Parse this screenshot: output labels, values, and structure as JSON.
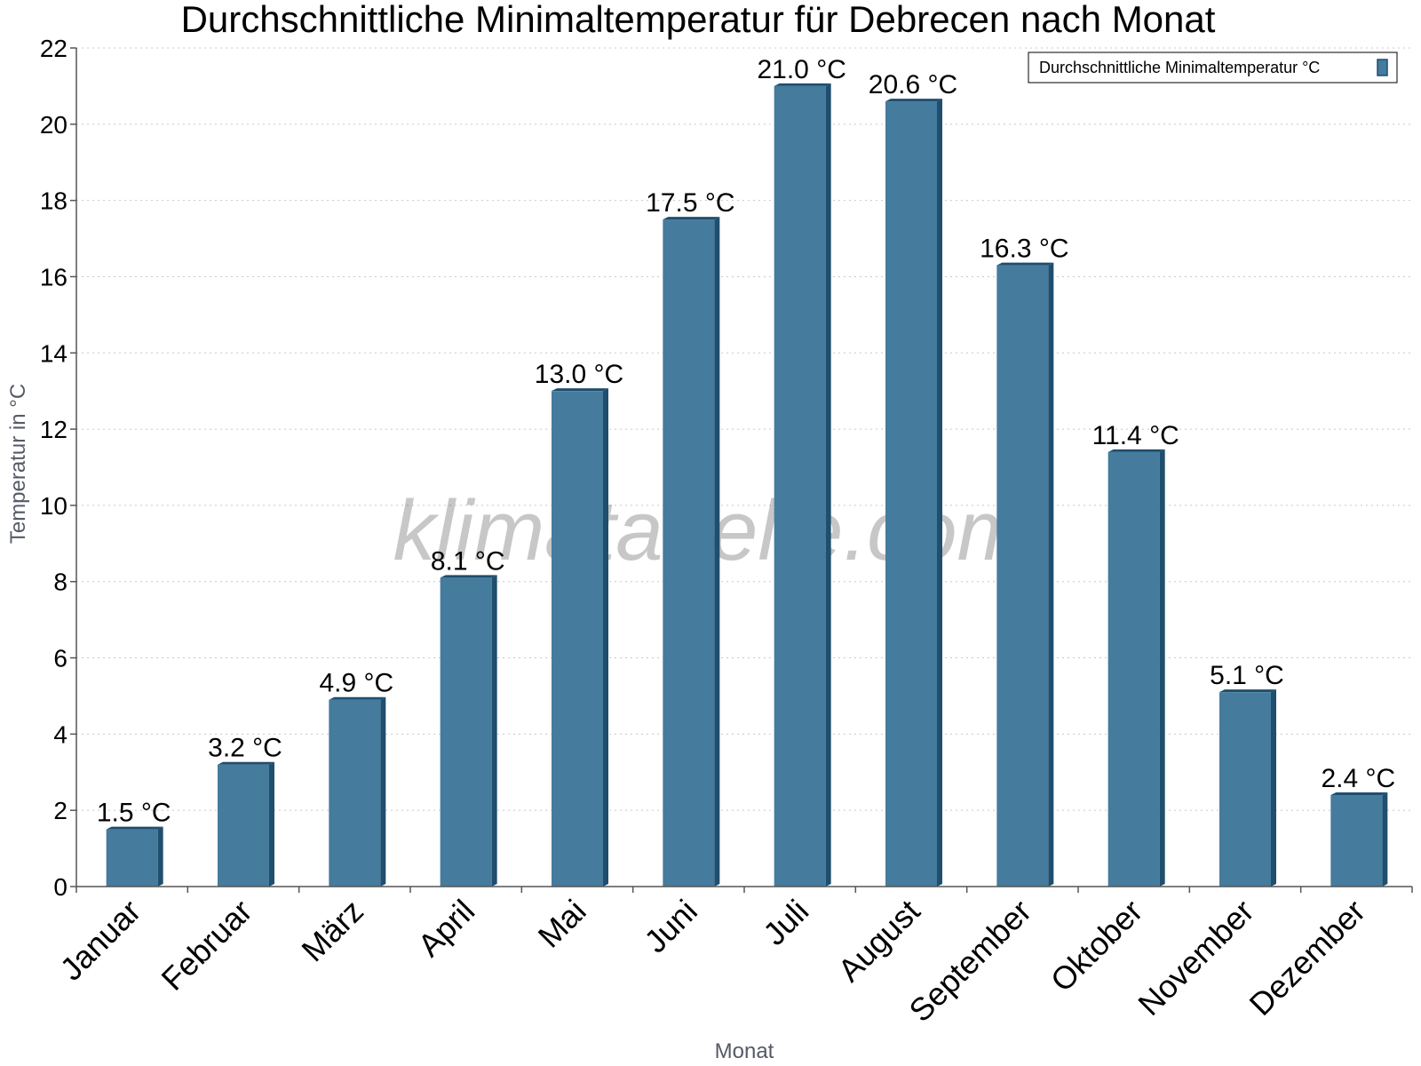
{
  "chart_data": {
    "type": "bar",
    "title": "Durchschnittliche Minimaltemperatur für Debrecen nach Monat",
    "xlabel": "Monat",
    "ylabel": "Temperatur in °C",
    "categories": [
      "Januar",
      "Februar",
      "März",
      "April",
      "Mai",
      "Juni",
      "Juli",
      "August",
      "September",
      "Oktober",
      "November",
      "Dezember"
    ],
    "series": [
      {
        "name": "Durchschnittliche Minimaltemperatur °C",
        "values": [
          1.5,
          3.2,
          4.9,
          8.1,
          13.0,
          17.5,
          21.0,
          20.6,
          16.3,
          11.4,
          5.1,
          2.4
        ],
        "labels": [
          "1.5 °C",
          "3.2 °C",
          "4.9 °C",
          "8.1 °C",
          "13.0 °C",
          "17.5 °C",
          "21.0 °C",
          "20.6 °C",
          "16.3 °C",
          "11.4 °C",
          "5.1 °C",
          "2.4 °C"
        ]
      }
    ],
    "ylim": [
      0,
      22
    ],
    "yticks": [
      0,
      2,
      4,
      6,
      8,
      10,
      12,
      14,
      16,
      18,
      20,
      22
    ],
    "grid": true,
    "legend_position": "top-right",
    "watermark": "klimatabelle.com",
    "colors": {
      "bar_front": "#457b9d",
      "bar_side": "#1f4e6e",
      "grid": "#c8c8c8",
      "axis": "#555555"
    }
  }
}
